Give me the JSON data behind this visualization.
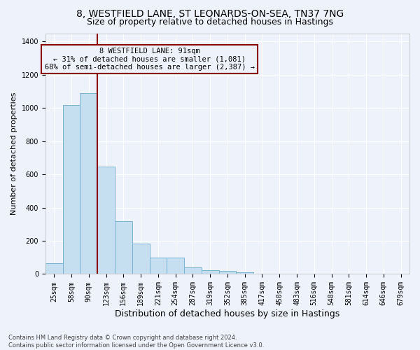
{
  "title1": "8, WESTFIELD LANE, ST LEONARDS-ON-SEA, TN37 7NG",
  "title2": "Size of property relative to detached houses in Hastings",
  "xlabel": "Distribution of detached houses by size in Hastings",
  "ylabel": "Number of detached properties",
  "footnote": "Contains HM Land Registry data © Crown copyright and database right 2024.\nContains public sector information licensed under the Open Government Licence v3.0.",
  "bin_labels": [
    "25sqm",
    "58sqm",
    "90sqm",
    "123sqm",
    "156sqm",
    "189sqm",
    "221sqm",
    "254sqm",
    "287sqm",
    "319sqm",
    "352sqm",
    "385sqm",
    "417sqm",
    "450sqm",
    "483sqm",
    "516sqm",
    "548sqm",
    "581sqm",
    "614sqm",
    "646sqm",
    "679sqm"
  ],
  "bar_values": [
    65,
    1020,
    1090,
    645,
    320,
    185,
    100,
    100,
    38,
    25,
    20,
    12,
    0,
    0,
    0,
    0,
    0,
    0,
    0,
    0,
    0
  ],
  "bar_color": "#c6dff0",
  "bar_edge_color": "#7ab3d3",
  "vline_x": 2.5,
  "vline_color": "#8b0000",
  "annotation_text": "8 WESTFIELD LANE: 91sqm\n← 31% of detached houses are smaller (1,081)\n68% of semi-detached houses are larger (2,387) →",
  "annotation_box_color": "#8b0000",
  "ylim": [
    0,
    1450
  ],
  "yticks": [
    0,
    200,
    400,
    600,
    800,
    1000,
    1200,
    1400
  ],
  "background_color": "#eef2fb",
  "grid_color": "#ffffff",
  "title1_fontsize": 10,
  "title2_fontsize": 9,
  "xlabel_fontsize": 9,
  "ylabel_fontsize": 8,
  "annotation_fontsize": 7.5,
  "tick_fontsize": 7,
  "footnote_fontsize": 6
}
